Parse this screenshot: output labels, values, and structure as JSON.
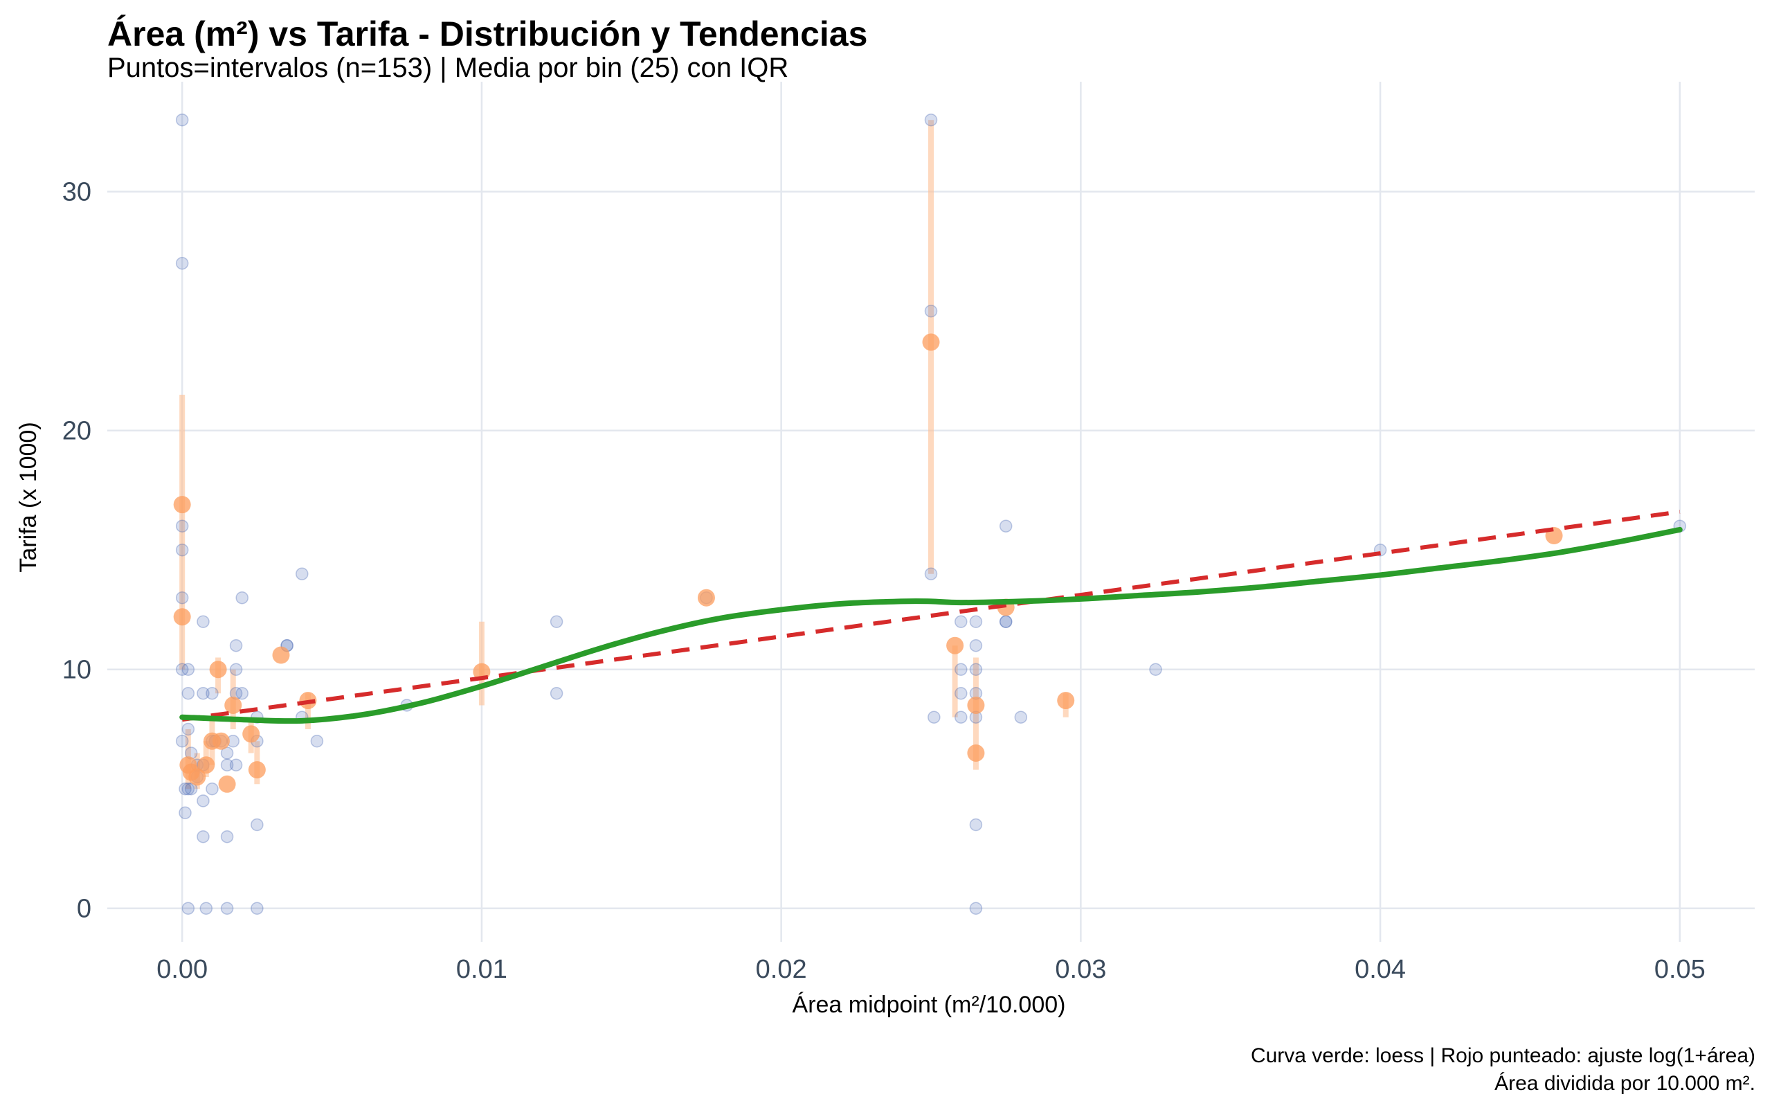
{
  "chart_data": {
    "type": "scatter",
    "title": "Área (m²) vs Tarifa - Distribución y Tendencias",
    "subtitle": "Puntos=intervalos (n=153) | Media por bin (25) con IQR",
    "xlabel": "Área midpoint (m²/10.000)",
    "ylabel": "Tarifa (x 1000)",
    "caption_lines": [
      "Curva verde: loess | Rojo punteado: ajuste log(1+área)",
      "Área dividida por 10.000 m²."
    ],
    "xlim": [
      -0.0025,
      0.0525
    ],
    "ylim": [
      -1.4,
      34.6
    ],
    "x_ticks": [
      0.0,
      0.01,
      0.02,
      0.03,
      0.04,
      0.05
    ],
    "x_tick_labels": [
      "0.00",
      "0.01",
      "0.02",
      "0.03",
      "0.04",
      "0.05"
    ],
    "y_ticks": [
      0,
      10,
      20,
      30
    ],
    "y_tick_labels": [
      "0",
      "10",
      "20",
      "30"
    ],
    "grid": true,
    "colors": {
      "points": "#4a6bb5",
      "bin_means": "#fc9c5c",
      "iqr": "#fdbf94",
      "loess": "#2a9c2a",
      "log_fit": "#d62b2b",
      "grid": "#e3e7ee"
    },
    "series": [
      {
        "kind": "scatter",
        "points": [
          [
            0,
            33
          ],
          [
            0,
            27
          ],
          [
            0,
            16
          ],
          [
            0,
            15
          ],
          [
            0,
            13
          ],
          [
            0,
            10
          ],
          [
            0,
            7
          ],
          [
            0.0001,
            5
          ],
          [
            0.0001,
            4
          ],
          [
            0.0002,
            10
          ],
          [
            0.0002,
            9
          ],
          [
            0.0002,
            5
          ],
          [
            0.0003,
            5
          ],
          [
            0.0002,
            0
          ],
          [
            0.0002,
            7.5
          ],
          [
            0.0003,
            6.5
          ],
          [
            0.0005,
            6
          ],
          [
            0.0005,
            5.5
          ],
          [
            0.0007,
            12
          ],
          [
            0.0007,
            9
          ],
          [
            0.0007,
            6
          ],
          [
            0.0007,
            4.5
          ],
          [
            0.0007,
            3
          ],
          [
            0.0008,
            0
          ],
          [
            0.001,
            9
          ],
          [
            0.001,
            7
          ],
          [
            0.001,
            5
          ],
          [
            0.0011,
            7
          ],
          [
            0.0013,
            7
          ],
          [
            0.0015,
            6.5
          ],
          [
            0.0015,
            6
          ],
          [
            0.0015,
            3
          ],
          [
            0.0015,
            0
          ],
          [
            0.0017,
            7
          ],
          [
            0.0018,
            11
          ],
          [
            0.0018,
            10
          ],
          [
            0.0018,
            9
          ],
          [
            0.0018,
            6
          ],
          [
            0.002,
            13
          ],
          [
            0.002,
            9
          ],
          [
            0.0025,
            8
          ],
          [
            0.0025,
            7
          ],
          [
            0.0025,
            3.5
          ],
          [
            0.0025,
            0
          ],
          [
            0.0035,
            11
          ],
          [
            0.0035,
            11
          ],
          [
            0.004,
            14
          ],
          [
            0.004,
            8
          ],
          [
            0.0045,
            7
          ],
          [
            0.0075,
            8.5
          ],
          [
            0.0125,
            12
          ],
          [
            0.0125,
            9
          ],
          [
            0.0175,
            13
          ],
          [
            0.025,
            33
          ],
          [
            0.025,
            25
          ],
          [
            0.025,
            14
          ],
          [
            0.0251,
            8
          ],
          [
            0.026,
            12
          ],
          [
            0.026,
            10
          ],
          [
            0.026,
            9
          ],
          [
            0.026,
            8
          ],
          [
            0.0265,
            12
          ],
          [
            0.0265,
            11
          ],
          [
            0.0265,
            10
          ],
          [
            0.0265,
            9
          ],
          [
            0.0265,
            8
          ],
          [
            0.0265,
            3.5
          ],
          [
            0.0265,
            0
          ],
          [
            0.0275,
            16
          ],
          [
            0.0275,
            12
          ],
          [
            0.0275,
            12
          ],
          [
            0.028,
            8
          ],
          [
            0.0325,
            10
          ],
          [
            0.04,
            15
          ],
          [
            0.05,
            16
          ]
        ]
      },
      {
        "kind": "bin_means",
        "points": [
          [
            0,
            16.9
          ],
          [
            0,
            12.2
          ],
          [
            0.0002,
            6
          ],
          [
            0.0003,
            5.7
          ],
          [
            0.0005,
            5.5
          ],
          [
            0.0008,
            6
          ],
          [
            0.001,
            7
          ],
          [
            0.0012,
            10
          ],
          [
            0.0013,
            7
          ],
          [
            0.0015,
            5.2
          ],
          [
            0.0017,
            8.5
          ],
          [
            0.0023,
            7.3
          ],
          [
            0.0025,
            5.8
          ],
          [
            0.0033,
            10.6
          ],
          [
            0.0042,
            8.7
          ],
          [
            0.01,
            9.9
          ],
          [
            0.0175,
            13
          ],
          [
            0.025,
            23.7
          ],
          [
            0.0258,
            11
          ],
          [
            0.0265,
            8.5
          ],
          [
            0.0265,
            6.5
          ],
          [
            0.0275,
            12.6
          ],
          [
            0.0295,
            8.7
          ],
          [
            0.0458,
            15.6
          ]
        ]
      },
      {
        "kind": "iqr",
        "ranges": [
          [
            0,
            10,
            21.5
          ],
          [
            0.0002,
            5,
            7.5
          ],
          [
            0.0005,
            5,
            6.5
          ],
          [
            0.0008,
            5.5,
            7
          ],
          [
            0.001,
            6,
            8
          ],
          [
            0.0012,
            9,
            10.5
          ],
          [
            0.0017,
            7.5,
            10
          ],
          [
            0.0023,
            6.5,
            8
          ],
          [
            0.0025,
            5.2,
            7
          ],
          [
            0.0042,
            7.5,
            9
          ],
          [
            0.01,
            8.5,
            12
          ],
          [
            0.025,
            14,
            33
          ],
          [
            0.0258,
            8,
            11
          ],
          [
            0.0265,
            5.8,
            10.5
          ],
          [
            0.0295,
            8,
            9
          ]
        ]
      },
      {
        "kind": "loess",
        "points": [
          [
            0,
            8.0
          ],
          [
            0.002,
            7.9
          ],
          [
            0.004,
            7.85
          ],
          [
            0.006,
            8.1
          ],
          [
            0.008,
            8.6
          ],
          [
            0.01,
            9.3
          ],
          [
            0.012,
            10.1
          ],
          [
            0.014,
            10.9
          ],
          [
            0.016,
            11.6
          ],
          [
            0.018,
            12.15
          ],
          [
            0.02,
            12.5
          ],
          [
            0.022,
            12.75
          ],
          [
            0.024,
            12.85
          ],
          [
            0.025,
            12.85
          ],
          [
            0.026,
            12.8
          ],
          [
            0.028,
            12.85
          ],
          [
            0.03,
            12.95
          ],
          [
            0.032,
            13.1
          ],
          [
            0.034,
            13.25
          ],
          [
            0.036,
            13.45
          ],
          [
            0.038,
            13.7
          ],
          [
            0.04,
            13.95
          ],
          [
            0.042,
            14.25
          ],
          [
            0.044,
            14.55
          ],
          [
            0.046,
            14.9
          ],
          [
            0.048,
            15.35
          ],
          [
            0.05,
            15.85
          ]
        ]
      },
      {
        "kind": "log_fit",
        "points": [
          [
            0.0,
            7.9
          ],
          [
            0.05,
            16.6
          ]
        ]
      }
    ]
  }
}
